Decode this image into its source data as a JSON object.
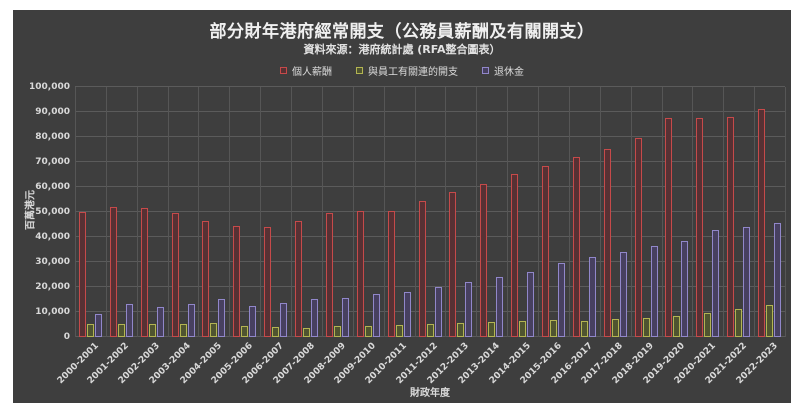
{
  "page": {
    "background_color": "#ffffff",
    "figure_background_color": "#3e3e3e",
    "grid_color": "#5b5b5b",
    "text_color": "#e2e2e2"
  },
  "chart_data": {
    "type": "bar",
    "title": "部分財年港府經常開支（公務員薪酬及有關開支）",
    "subtitle": "資料來源：港府統計處 (RFA整合圖表）",
    "xlabel": "財政年度",
    "ylabel": "百萬港元",
    "ylim": [
      0,
      100000
    ],
    "ytick_step": 10000,
    "ytick_labels": [
      "0",
      "10,000",
      "20,000",
      "30,000",
      "40,000",
      "50,000",
      "60,000",
      "70,000",
      "80,000",
      "90,000",
      "100,000"
    ],
    "grid": true,
    "legend_position": "top",
    "x_tick_rotation_deg": 45,
    "categories": [
      "2000-2001",
      "2001-2002",
      "2002-2003",
      "2003-2004",
      "2004-2005",
      "2005-2006",
      "2006-2007",
      "2007-2008",
      "2008-2009",
      "2009-2010",
      "2010-2011",
      "2011-2012",
      "2012-2013",
      "2013-2014",
      "2014-2015",
      "2015-2016",
      "2016-2017",
      "2017-2018",
      "2018-2019",
      "2019-2020",
      "2020-2021",
      "2021-2022",
      "2022-2023"
    ],
    "series": [
      {
        "name": "個人薪酬",
        "edge_color": "#c64a4a",
        "fill_color": "#573134",
        "values": [
          50000,
          52000,
          51500,
          49500,
          46500,
          44500,
          44000,
          46500,
          49500,
          50500,
          50500,
          54500,
          58000,
          61000,
          65000,
          68500,
          72000,
          75000,
          79500,
          87500,
          87500,
          88000,
          91000
        ]
      },
      {
        "name": "與員工有關連的開支",
        "edge_color": "#b3b452",
        "fill_color": "#4f5430",
        "values": [
          5000,
          5200,
          5000,
          5200,
          5500,
          4500,
          4000,
          3500,
          4500,
          4500,
          4700,
          5100,
          5600,
          6000,
          6400,
          6800,
          6500,
          7000,
          7500,
          8500,
          9500,
          11000,
          12700
        ]
      },
      {
        "name": "退休金",
        "edge_color": "#9187ca",
        "fill_color": "#474060",
        "values": [
          9000,
          13000,
          12000,
          13000,
          15000,
          12500,
          13500,
          15000,
          15500,
          17000,
          18000,
          20000,
          22000,
          24000,
          26000,
          29500,
          32000,
          34000,
          36500,
          38500,
          42700,
          44000,
          45500
        ]
      }
    ]
  }
}
